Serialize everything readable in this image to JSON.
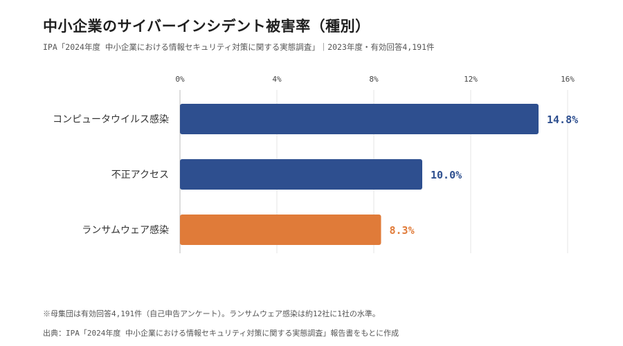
{
  "header": {
    "title": "中小企業のサイバーインシデント被害率（種別）",
    "subtitle": "IPA「2024年度 中小企業における情報セキュリティ対策に関する実態調査」｜2023年度・有効回答4,191件"
  },
  "chart_data": {
    "type": "bar",
    "orientation": "horizontal",
    "categories": [
      "コンピュータウイルス感染",
      "不正アクセス",
      "ランサムウェア感染"
    ],
    "values": [
      14.8,
      10.0,
      8.3
    ],
    "value_labels": [
      "14.8%",
      "10.0%",
      "8.3%"
    ],
    "colors": [
      "#2e4f8f",
      "#2e4f8f",
      "#e07b39"
    ],
    "xlim": [
      0,
      16
    ],
    "ticks": [
      0,
      4,
      8,
      12,
      16
    ],
    "tick_labels": [
      "0%",
      "4%",
      "8%",
      "12%",
      "16%"
    ],
    "axis_position": "top",
    "grid": true
  },
  "footer": {
    "note": "※母集団は有効回答4,191件（自己申告アンケート）。ランサムウェア感染は約12社に1社の水準。",
    "source": "出典：IPA「2024年度 中小企業における情報セキュリティ対策に関する実態調査」報告書をもとに作成"
  }
}
